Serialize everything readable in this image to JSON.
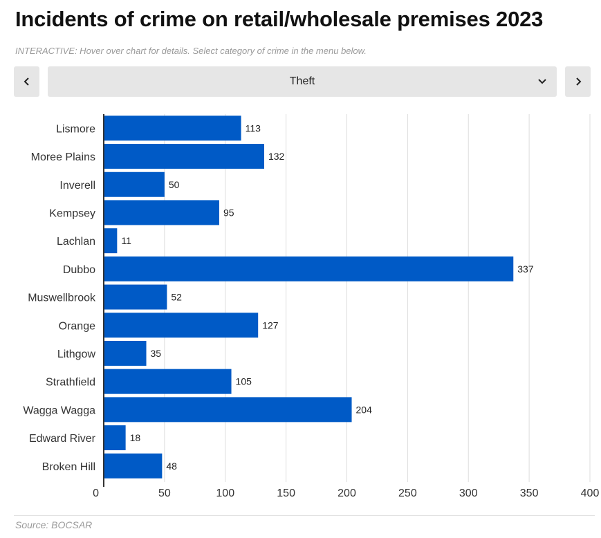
{
  "title": "Incidents of crime on retail/wholesale premises 2023",
  "subtitle": "INTERACTIVE: Hover over chart for details. Select category of crime in the menu below.",
  "controls": {
    "prev_icon": "chevron-left-icon",
    "next_icon": "chevron-right-icon",
    "dropdown_icon": "chevron-down-icon",
    "selected_category": "Theft"
  },
  "source": "Source: BOCSAR",
  "colors": {
    "bar": "#005AC6",
    "gridline": "#dddddd",
    "axis": "#333333",
    "control_bg": "#e6e6e6"
  },
  "chart_data": {
    "type": "bar",
    "orientation": "horizontal",
    "title": "Incidents of crime on retail/wholesale premises 2023",
    "categories": [
      "Lismore",
      "Moree Plains",
      "Inverell",
      "Kempsey",
      "Lachlan",
      "Dubbo",
      "Muswellbrook",
      "Orange",
      "Lithgow",
      "Strathfield",
      "Wagga Wagga",
      "Edward River",
      "Broken Hill"
    ],
    "values": [
      113,
      132,
      50,
      95,
      11,
      337,
      52,
      127,
      35,
      105,
      204,
      18,
      48
    ],
    "xlim": [
      0,
      400
    ],
    "xticks": [
      0,
      50,
      100,
      150,
      200,
      250,
      300,
      350,
      400
    ],
    "xlabel": "",
    "ylabel": "",
    "grid": true,
    "data_labels": true,
    "legend": "none"
  }
}
